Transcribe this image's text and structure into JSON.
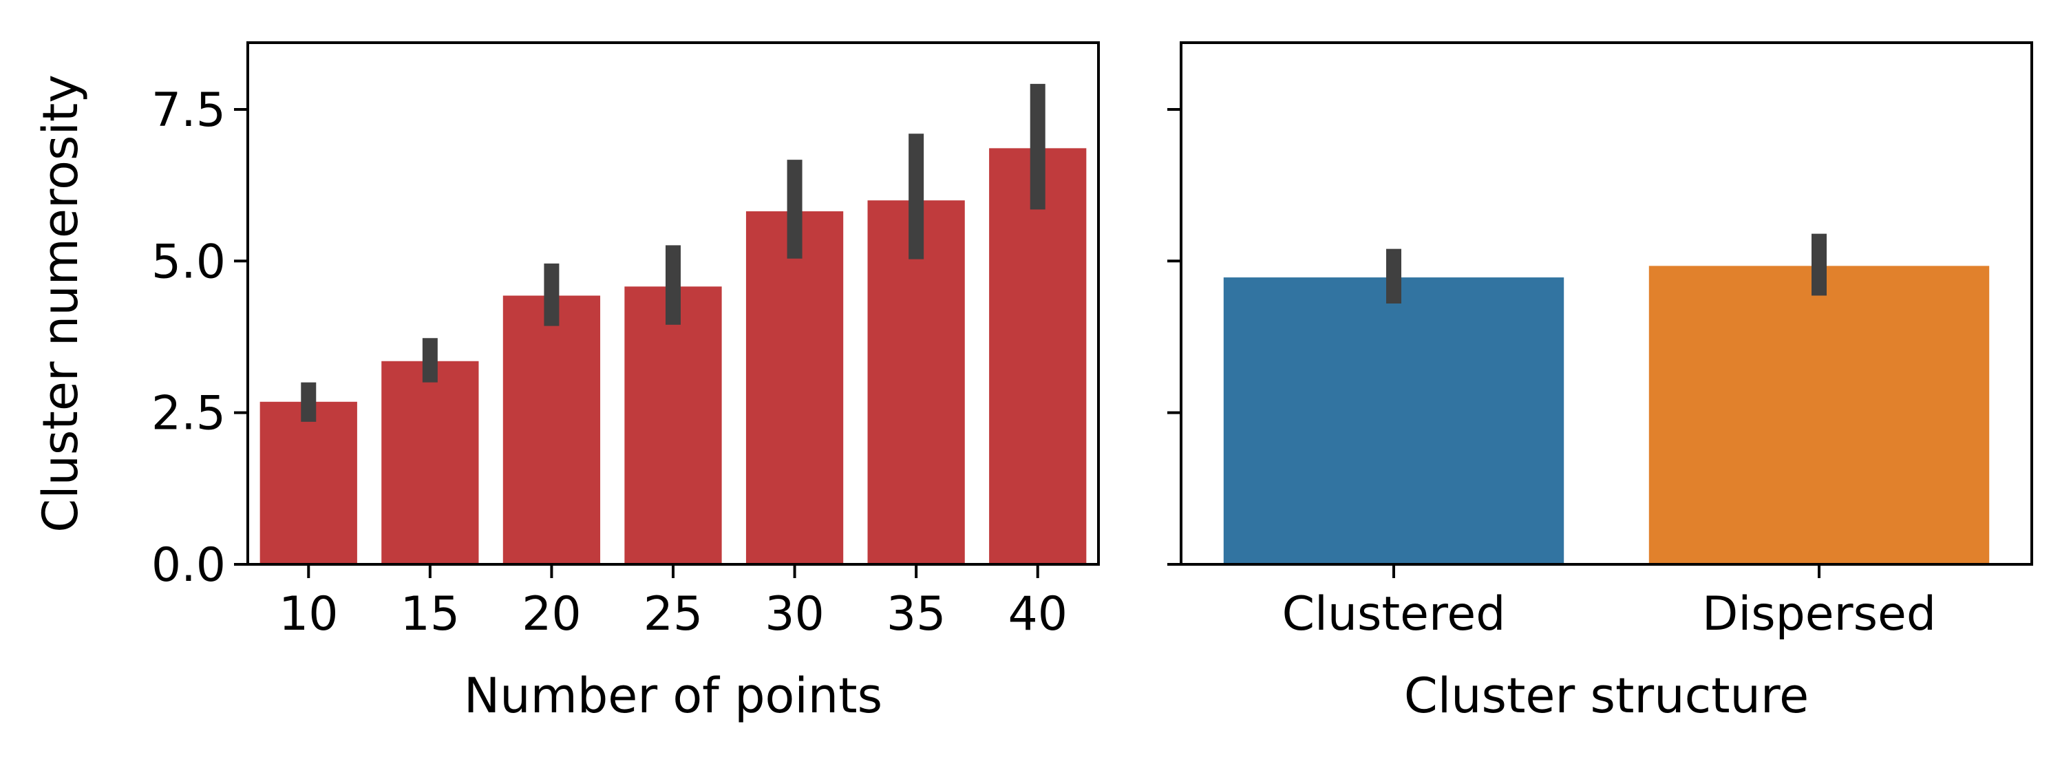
{
  "chart_data": [
    {
      "type": "bar",
      "xlabel": "Number of points",
      "ylabel": "Cluster numerosity",
      "categories": [
        "10",
        "15",
        "20",
        "25",
        "30",
        "35",
        "40"
      ],
      "values": [
        2.68,
        3.35,
        4.43,
        4.58,
        5.82,
        6.0,
        6.86
      ],
      "error_low": [
        2.35,
        3.0,
        3.93,
        3.95,
        5.04,
        5.03,
        5.85
      ],
      "error_high": [
        3.0,
        3.73,
        4.96,
        5.26,
        6.67,
        7.1,
        7.92
      ],
      "ylim": [
        0,
        8.6
      ],
      "yticks": [
        "0.0",
        "2.5",
        "5.0",
        "7.5"
      ],
      "bar_color": "#c03b3d",
      "error_color": "#404040",
      "grid": false
    },
    {
      "type": "bar",
      "xlabel": "Cluster structure",
      "ylabel": "",
      "categories": [
        "Clustered",
        "Dispersed"
      ],
      "values": [
        4.73,
        4.92
      ],
      "error_low": [
        4.3,
        4.43
      ],
      "error_high": [
        5.2,
        5.45
      ],
      "ylim": [
        0,
        8.6
      ],
      "shared_y": true,
      "bar_colors": [
        "#3274a1",
        "#e1812c"
      ],
      "error_color": "#404040",
      "grid": false
    }
  ]
}
